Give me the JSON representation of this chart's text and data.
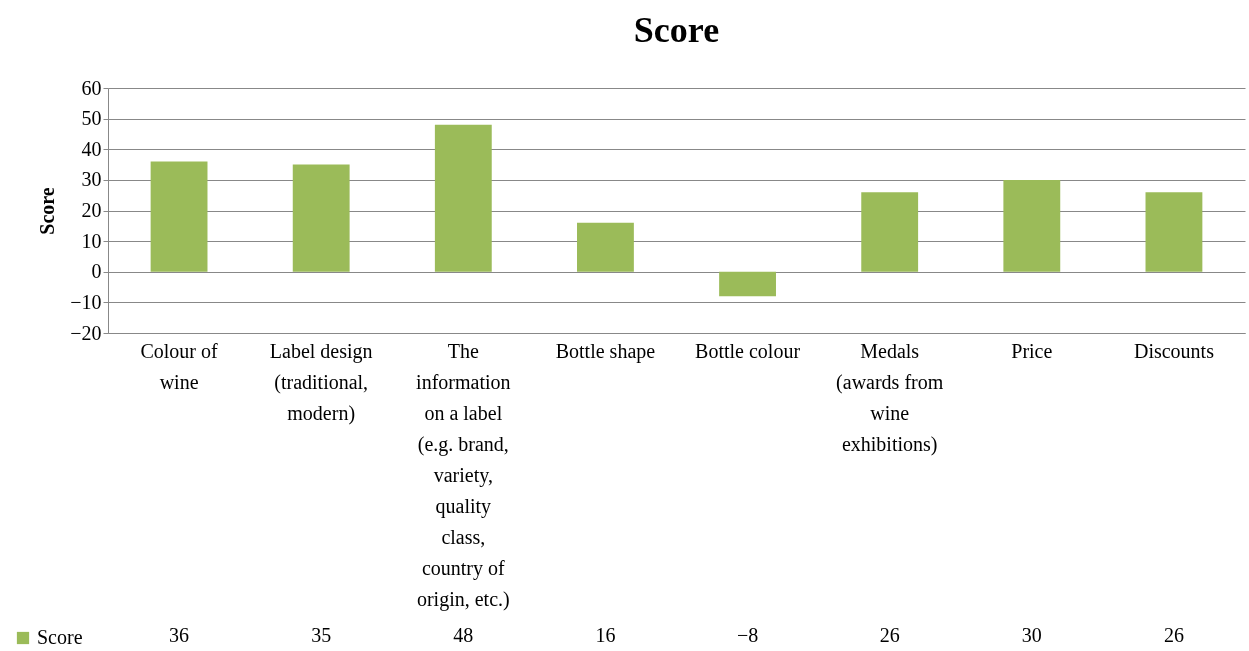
{
  "chart_data": {
    "type": "bar",
    "title": "Score",
    "ylabel": "Score",
    "categories": [
      "Colour of wine",
      "Label design (traditional, modern)",
      "The information on a label (e.g. brand, variety, quality class, country of origin, etc.)",
      "Bottle shape",
      "Bottle colour",
      "Medals (awards from wine exhibitions)",
      "Price",
      "Discounts"
    ],
    "series": [
      {
        "name": "Score",
        "color": "#9bbb59",
        "values": [
          36,
          35,
          48,
          16,
          -8,
          26,
          30,
          26
        ]
      }
    ],
    "ylim": [
      -20,
      60
    ],
    "yticks": [
      -20,
      -10,
      0,
      10,
      20,
      30,
      40,
      50,
      60
    ],
    "grid": "y",
    "legend": "bottom left",
    "data_labels": true
  }
}
